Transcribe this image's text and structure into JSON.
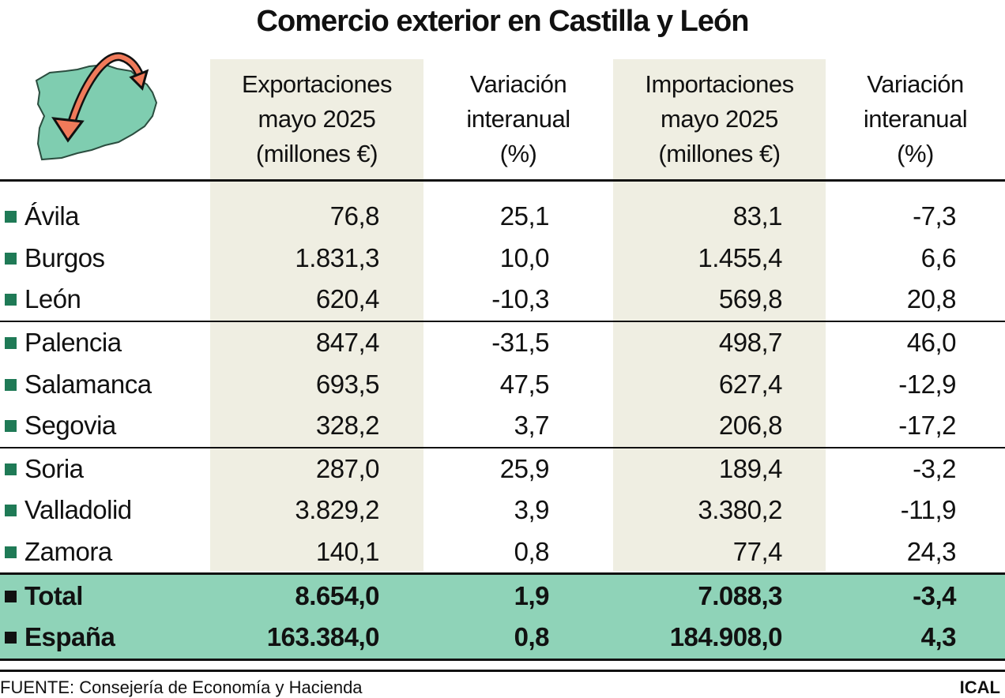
{
  "title": "Comercio exterior en Castilla y León",
  "colors": {
    "accent_green": "#8fd3b8",
    "marker": "#1f7a56",
    "shade": "#efeee2",
    "arrow": "#f07a5a"
  },
  "icon": "castilla-leon-map-arrow-icon",
  "chart_data": {
    "type": "table",
    "title": "Comercio exterior en Castilla y León",
    "columns": [
      "",
      "Exportaciones mayo 2025 (millones €)",
      "Variación interanual (%)",
      "Importaciones mayo 2025 (millones €)",
      "Variación interanual (%)"
    ],
    "header_lines": [
      [],
      [
        "Exportaciones",
        "mayo 2025",
        "(millones €)"
      ],
      [
        "Variación",
        "interanual",
        "(%)"
      ],
      [
        "Importaciones",
        "mayo 2025",
        "(millones €)"
      ],
      [
        "Variación",
        "interanual",
        "(%)"
      ]
    ],
    "rows": [
      [
        "Ávila",
        "76,8",
        "25,1",
        "83,1",
        "-7,3"
      ],
      [
        "Burgos",
        "1.831,3",
        "10,0",
        "1.455,4",
        "6,6"
      ],
      [
        "León",
        "620,4",
        "-10,3",
        "569,8",
        "20,8"
      ],
      [
        "Palencia",
        "847,4",
        "-31,5",
        "498,7",
        "46,0"
      ],
      [
        "Salamanca",
        "693,5",
        "47,5",
        "627,4",
        "-12,9"
      ],
      [
        "Segovia",
        "328,2",
        "3,7",
        "206,8",
        "-17,2"
      ],
      [
        "Soria",
        "287,0",
        "25,9",
        "189,4",
        "-3,2"
      ],
      [
        "Valladolid",
        "3.829,2",
        "3,9",
        "3.380,2",
        "-11,9"
      ],
      [
        "Zamora",
        "140,1",
        "0,8",
        "77,4",
        "24,3"
      ],
      [
        "Total",
        "8.654,0",
        "1,9",
        "7.088,3",
        "-3,4"
      ],
      [
        "España",
        "163.384,0",
        "0,8",
        "184.908,0",
        "4,3"
      ]
    ]
  },
  "footer": {
    "source": "FUENTE: Consejería de Economía y Hacienda",
    "credit": "ICAL"
  }
}
